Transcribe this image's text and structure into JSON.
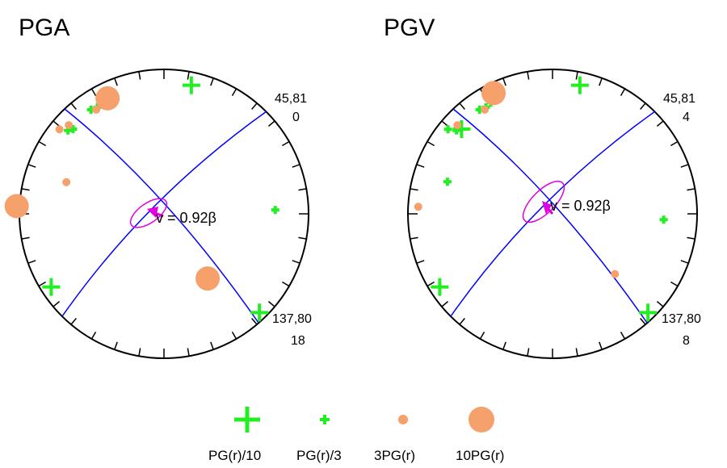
{
  "colors": {
    "plane": "#0000ff",
    "ellipse": "#e000e0",
    "green": "#22ee22",
    "orange": "#f6a06c",
    "circle": "#000000"
  },
  "panels": [
    {
      "title": "PGA",
      "plane1_label": "45,81",
      "plane1_value": "0",
      "plane2_label": "137,80",
      "plane2_value": "18",
      "velocity_label": "v = 0.92β",
      "markers": [
        {
          "kind": "PG(r)/10",
          "az": 12,
          "r": 0.91
        },
        {
          "kind": "PG(r)/3",
          "az": 325,
          "r": 0.88
        },
        {
          "kind": "PG(r)/3",
          "az": 328,
          "r": 0.87
        },
        {
          "kind": "PG(r)/3",
          "az": 331,
          "r": 0.88
        },
        {
          "kind": "3PG(r)",
          "az": 327,
          "r": 0.86
        },
        {
          "kind": "10PG(r)",
          "az": 334,
          "r": 0.89
        },
        {
          "kind": "PG(r)/3",
          "az": 313,
          "r": 0.86
        },
        {
          "kind": "PG(r)/3",
          "az": 311,
          "r": 0.88
        },
        {
          "kind": "3PG(r)",
          "az": 313,
          "r": 0.9
        },
        {
          "kind": "3PG(r)",
          "az": 309,
          "r": 0.93
        },
        {
          "kind": "3PG(r)",
          "az": 288,
          "r": 0.71
        },
        {
          "kind": "10PG(r)",
          "az": 273,
          "r": 1.02
        },
        {
          "kind": "PG(r)/10",
          "az": 237,
          "r": 0.93
        },
        {
          "kind": "PG(r)/3",
          "az": 88,
          "r": 0.77
        },
        {
          "kind": "10PG(r)",
          "az": 146,
          "r": 0.54
        },
        {
          "kind": "PG(r)/10",
          "az": 136,
          "r": 0.95
        }
      ]
    },
    {
      "title": "PGV",
      "plane1_label": "45,81",
      "plane1_value": "4",
      "plane2_label": "137,80",
      "plane2_value": "8",
      "velocity_label": "v = 0.92β",
      "markers": [
        {
          "kind": "PG(r)/10",
          "az": 12,
          "r": 0.91
        },
        {
          "kind": "PG(r)/3",
          "az": 325,
          "r": 0.88
        },
        {
          "kind": "PG(r)/3",
          "az": 328,
          "r": 0.87
        },
        {
          "kind": "PG(r)/3",
          "az": 331,
          "r": 0.88
        },
        {
          "kind": "3PG(r)",
          "az": 327,
          "r": 0.86
        },
        {
          "kind": "10PG(r)",
          "az": 334,
          "r": 0.93
        },
        {
          "kind": "PG(r)/10",
          "az": 313,
          "r": 0.86
        },
        {
          "kind": "PG(r)/3",
          "az": 311,
          "r": 0.88
        },
        {
          "kind": "3PG(r)",
          "az": 313,
          "r": 0.9
        },
        {
          "kind": "PG(r)/3",
          "az": 309,
          "r": 0.93
        },
        {
          "kind": "PG(r)/3",
          "az": 287,
          "r": 0.76
        },
        {
          "kind": "3PG(r)",
          "az": 273,
          "r": 0.93
        },
        {
          "kind": "PG(r)/10",
          "az": 237,
          "r": 0.93
        },
        {
          "kind": "PG(r)/3",
          "az": 93,
          "r": 0.77
        },
        {
          "kind": "3PG(r)",
          "az": 134,
          "r": 0.6
        },
        {
          "kind": "PG(r)/10",
          "az": 136,
          "r": 0.95
        }
      ]
    }
  ],
  "legend": [
    {
      "kind": "PG(r)/10",
      "label": "PG(r)/10"
    },
    {
      "kind": "PG(r)/3",
      "label": "PG(r)/3"
    },
    {
      "kind": "3PG(r)",
      "label": "3PG(r)"
    },
    {
      "kind": "10PG(r)",
      "label": "10PG(r)"
    }
  ]
}
